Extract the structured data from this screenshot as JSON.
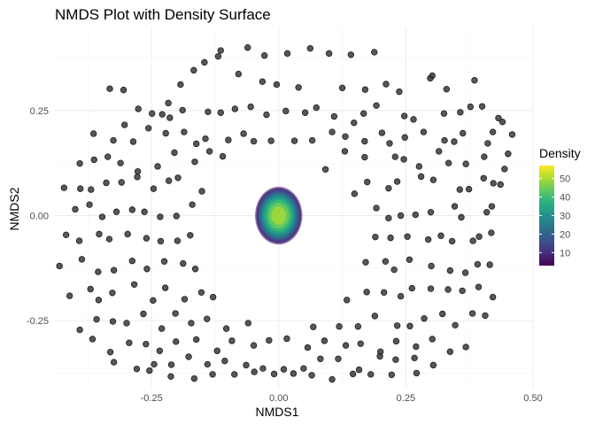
{
  "chart_data": {
    "type": "scatter",
    "title": "NMDS Plot with Density Surface",
    "xlabel": "NMDS1",
    "ylabel": "NMDS2",
    "xlim": [
      -0.44,
      0.5
    ],
    "ylim": [
      -0.41,
      0.45
    ],
    "x_ticks": [
      -0.25,
      0.0,
      0.25,
      0.5
    ],
    "x_tick_labels": [
      "-0.25",
      "0.00",
      "0.25",
      "0.50"
    ],
    "y_ticks": [
      -0.25,
      0.0,
      0.25
    ],
    "y_tick_labels": [
      "-0.25",
      "0.00",
      "0.25"
    ],
    "grid": true,
    "density_surface": {
      "center": [
        0.0,
        0.0
      ],
      "x_half_width": 0.08,
      "y_half_width": 0.08,
      "levels": [
        5,
        10,
        15,
        20,
        25,
        30,
        35,
        40,
        45,
        50
      ],
      "peak": 55
    },
    "legend": {
      "title": "Density",
      "position": "right",
      "range": [
        3,
        57
      ],
      "ticks": [
        10,
        20,
        30,
        40,
        50
      ],
      "tick_labels": [
        "10",
        "20",
        "30",
        "40",
        "50"
      ],
      "colormap": "viridis"
    },
    "series": [
      {
        "x": [
          -0.332,
          -0.305,
          -0.193,
          -0.167,
          -0.146,
          -0.119,
          -0.079,
          -0.032,
          -0.004,
          0.039,
          0.125,
          0.17,
          0.211,
          0.237,
          0.298,
          0.302,
          0.33,
          0.385,
          -0.303,
          -0.249,
          -0.276,
          -0.217,
          -0.229,
          -0.189,
          -0.214,
          -0.139,
          -0.114,
          -0.086,
          -0.055,
          -0.024,
          0.014,
          0.052,
          0.074,
          0.109,
          0.148,
          0.167,
          0.192,
          0.247,
          0.265,
          0.325,
          0.357,
          0.377,
          0.4,
          0.432,
          0.44,
          -0.364,
          -0.325,
          -0.286,
          -0.256,
          -0.222,
          -0.186,
          -0.162,
          -0.144,
          -0.099,
          -0.069,
          -0.049,
          -0.015,
          0.031,
          0.066,
          0.105,
          0.131,
          0.169,
          0.203,
          0.218,
          0.248,
          0.285,
          0.326,
          0.345,
          0.362,
          0.411,
          0.421,
          0.459,
          -0.391,
          -0.363,
          -0.336,
          -0.311,
          -0.277,
          -0.238,
          -0.205,
          -0.165,
          -0.136,
          -0.11,
          0.092,
          0.13,
          0.169,
          0.229,
          0.246,
          0.276,
          0.315,
          0.334,
          0.368,
          0.404,
          0.444,
          0.451,
          -0.422,
          -0.39,
          -0.369,
          -0.339,
          -0.309,
          -0.278,
          -0.246,
          -0.216,
          -0.198,
          -0.151,
          0.149,
          0.174,
          0.216,
          0.233,
          0.28,
          0.304,
          0.356,
          0.374,
          0.403,
          0.422,
          0.436,
          -0.4,
          -0.372,
          -0.347,
          -0.319,
          -0.288,
          -0.264,
          -0.233,
          -0.201,
          -0.17,
          0.192,
          0.216,
          0.24,
          0.269,
          0.299,
          0.346,
          0.359,
          0.409,
          0.419,
          -0.418,
          -0.392,
          -0.353,
          -0.333,
          -0.297,
          -0.26,
          -0.232,
          -0.199,
          -0.174,
          0.19,
          0.22,
          0.253,
          0.294,
          0.319,
          0.341,
          0.382,
          0.394,
          0.418,
          -0.431,
          -0.387,
          -0.355,
          -0.324,
          -0.288,
          -0.259,
          -0.225,
          -0.188,
          -0.164,
          0.171,
          0.21,
          0.227,
          0.257,
          0.3,
          0.337,
          0.367,
          0.391,
          0.415,
          -0.411,
          -0.37,
          -0.354,
          -0.327,
          -0.284,
          -0.247,
          -0.223,
          -0.185,
          -0.152,
          -0.129,
          0.134,
          0.173,
          0.207,
          0.24,
          0.262,
          0.299,
          0.333,
          0.361,
          0.393,
          0.421,
          -0.391,
          -0.358,
          -0.326,
          -0.299,
          -0.266,
          -0.23,
          -0.203,
          -0.172,
          -0.141,
          -0.103,
          -0.06,
          0.068,
          0.119,
          0.156,
          0.189,
          0.233,
          0.258,
          0.286,
          0.322,
          0.347,
          0.381,
          0.406,
          -0.366,
          -0.331,
          -0.294,
          -0.261,
          -0.234,
          -0.202,
          -0.162,
          -0.121,
          -0.092,
          -0.049,
          -0.019,
          0.016,
          0.057,
          0.09,
          0.132,
          0.161,
          0.2,
          0.231,
          0.27,
          0.302,
          0.337,
          0.368,
          -0.324,
          -0.279,
          -0.245,
          -0.211,
          -0.177,
          -0.14,
          -0.106,
          -0.064,
          -0.031,
          0.01,
          0.049,
          0.082,
          0.117,
          0.158,
          0.199,
          0.23,
          0.267,
          0.304,
          -0.254,
          -0.212,
          -0.166,
          -0.13,
          -0.087,
          -0.048,
          -0.009,
          0.029,
          0.065,
          0.105,
          0.146,
          0.181,
          0.222,
          0.271,
          -0.114,
          -0.061,
          -0.028,
          0.017,
          0.062,
          0.099,
          0.142,
          0.188
        ],
        "y": [
          0.302,
          0.299,
          0.312,
          0.346,
          0.365,
          0.379,
          0.337,
          0.319,
          0.312,
          0.305,
          0.304,
          0.3,
          0.313,
          0.295,
          0.327,
          0.333,
          0.301,
          0.322,
          0.216,
          0.243,
          0.254,
          0.268,
          0.241,
          0.251,
          0.233,
          0.247,
          0.245,
          0.254,
          0.259,
          0.24,
          0.249,
          0.245,
          0.257,
          0.236,
          0.221,
          0.243,
          0.262,
          0.237,
          0.229,
          0.243,
          0.246,
          0.259,
          0.26,
          0.232,
          0.223,
          0.195,
          0.179,
          0.176,
          0.208,
          0.196,
          0.199,
          0.171,
          0.183,
          0.18,
          0.195,
          0.177,
          0.178,
          0.178,
          0.179,
          0.199,
          0.188,
          0.177,
          0.197,
          0.172,
          0.186,
          0.199,
          0.179,
          0.176,
          0.196,
          0.172,
          0.199,
          0.193,
          0.124,
          0.133,
          0.14,
          0.125,
          0.105,
          0.117,
          0.15,
          0.128,
          0.153,
          0.141,
          0.11,
          0.153,
          0.139,
          0.14,
          0.134,
          0.117,
          0.153,
          0.125,
          0.123,
          0.14,
          0.111,
          0.147,
          0.066,
          0.064,
          0.062,
          0.078,
          0.079,
          0.092,
          0.064,
          0.083,
          0.09,
          0.058,
          0.052,
          0.08,
          0.065,
          0.081,
          0.093,
          0.085,
          0.062,
          0.063,
          0.089,
          0.077,
          0.074,
          0.015,
          0.026,
          -0.003,
          0.009,
          0.014,
          0.009,
          -0.003,
          -0.001,
          0.026,
          0.018,
          -0.006,
          0.0,
          0.002,
          0.008,
          0.022,
          -0.004,
          0.008,
          0.022,
          -0.046,
          -0.06,
          -0.044,
          -0.056,
          -0.044,
          -0.054,
          -0.061,
          -0.06,
          -0.047,
          -0.051,
          -0.053,
          -0.05,
          -0.057,
          -0.048,
          -0.061,
          -0.06,
          -0.05,
          -0.041,
          -0.12,
          -0.104,
          -0.134,
          -0.13,
          -0.108,
          -0.127,
          -0.109,
          -0.114,
          -0.127,
          -0.111,
          -0.109,
          -0.129,
          -0.105,
          -0.12,
          -0.131,
          -0.136,
          -0.116,
          -0.117,
          -0.191,
          -0.175,
          -0.201,
          -0.184,
          -0.164,
          -0.202,
          -0.172,
          -0.199,
          -0.183,
          -0.194,
          -0.201,
          -0.182,
          -0.183,
          -0.192,
          -0.173,
          -0.174,
          -0.176,
          -0.179,
          -0.17,
          -0.194,
          -0.272,
          -0.247,
          -0.252,
          -0.256,
          -0.234,
          -0.269,
          -0.233,
          -0.256,
          -0.246,
          -0.269,
          -0.256,
          -0.265,
          -0.264,
          -0.264,
          -0.239,
          -0.262,
          -0.263,
          -0.245,
          -0.234,
          -0.261,
          -0.233,
          -0.238,
          -0.294,
          -0.325,
          -0.303,
          -0.306,
          -0.322,
          -0.3,
          -0.295,
          -0.322,
          -0.298,
          -0.309,
          -0.297,
          -0.293,
          -0.314,
          -0.298,
          -0.309,
          -0.305,
          -0.324,
          -0.299,
          -0.312,
          -0.294,
          -0.324,
          -0.313,
          -0.349,
          -0.365,
          -0.354,
          -0.355,
          -0.336,
          -0.354,
          -0.346,
          -0.356,
          -0.364,
          -0.366,
          -0.364,
          -0.341,
          -0.341,
          -0.367,
          -0.335,
          -0.343,
          -0.339,
          -0.356,
          -0.369,
          -0.383,
          -0.388,
          -0.378,
          -0.378,
          -0.372,
          -0.377,
          -0.376,
          -0.38,
          -0.39,
          -0.377,
          -0.378,
          -0.379,
          -0.375,
          0.393,
          0.4,
          0.381,
          0.386,
          0.398,
          0.386,
          0.383,
          0.389
        ]
      }
    ]
  }
}
